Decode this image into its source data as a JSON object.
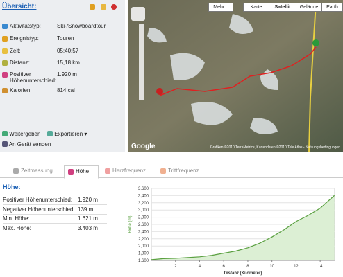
{
  "overview": {
    "title": "Übersicht:",
    "rows": [
      {
        "label": "Aktivitätstyp:",
        "value": "Ski-/Snowboardtour"
      },
      {
        "label": "Ereignistyp:",
        "value": "Touren"
      },
      {
        "label": "Zeit:",
        "value": "05:40:57"
      },
      {
        "label": "Distanz:",
        "value": "15,18 km"
      },
      {
        "label": "Positiver Höhenunterschied:",
        "value": "1.920 m"
      },
      {
        "label": "Kalorien:",
        "value": "814 cal"
      }
    ],
    "actions": [
      "Weitergeben",
      "Exportieren",
      "An Gerät senden"
    ]
  },
  "map": {
    "buttons": [
      "Mehr...",
      "Karte",
      "Satellit",
      "Gelände",
      "Earth"
    ],
    "attribution": "Grafiken ©2010 TerraMetrics, Kartendaten ©2010 Tele Atlas - Nutzungsbedingungen",
    "logo": "Google"
  },
  "tabs": [
    "Zeitmessung",
    "Höhe",
    "Herzfrequenz",
    "Trittfrequenz"
  ],
  "stats": {
    "title": "Höhe:",
    "rows": [
      {
        "label": "Positiver Höhenunterschied:",
        "value": "1.920 m"
      },
      {
        "label": "Negativer Höhenunterschied:",
        "value": "139 m"
      },
      {
        "label": "Min. Höhe:",
        "value": "1.621 m"
      },
      {
        "label": "Max. Höhe:",
        "value": "3.403 m"
      }
    ]
  },
  "chart_data": {
    "type": "area",
    "ylabel": "Höhe (m)",
    "xlabel": "Distanz (Kilometer)",
    "color": "#5aa040",
    "x": [
      0,
      1,
      2,
      3,
      4,
      5,
      6,
      7,
      8,
      9,
      10,
      11,
      12,
      13,
      14,
      14.5,
      15.18
    ],
    "values": [
      1621,
      1650,
      1660,
      1680,
      1700,
      1740,
      1800,
      1860,
      1950,
      2080,
      2250,
      2450,
      2680,
      2850,
      3050,
      3200,
      3403
    ],
    "xlim": [
      0,
      15.2
    ],
    "ylim": [
      1600,
      3600
    ],
    "xticks": [
      2,
      4,
      6,
      8,
      10,
      12,
      14
    ],
    "yticks": [
      {
        "value": 1600,
        "label": "1,600"
      },
      {
        "value": 1800,
        "label": "1,800"
      },
      {
        "value": 2000,
        "label": "2,000"
      },
      {
        "value": 2200,
        "label": "2,200"
      },
      {
        "value": 2400,
        "label": "2,400"
      },
      {
        "value": 2600,
        "label": "2,600"
      },
      {
        "value": 2800,
        "label": "2,800"
      },
      {
        "value": 3000,
        "label": "3,000"
      },
      {
        "value": 3200,
        "label": "3,200"
      },
      {
        "value": 3400,
        "label": "3,400"
      },
      {
        "value": 3600,
        "label": "3,600"
      }
    ],
    "grid": true
  }
}
